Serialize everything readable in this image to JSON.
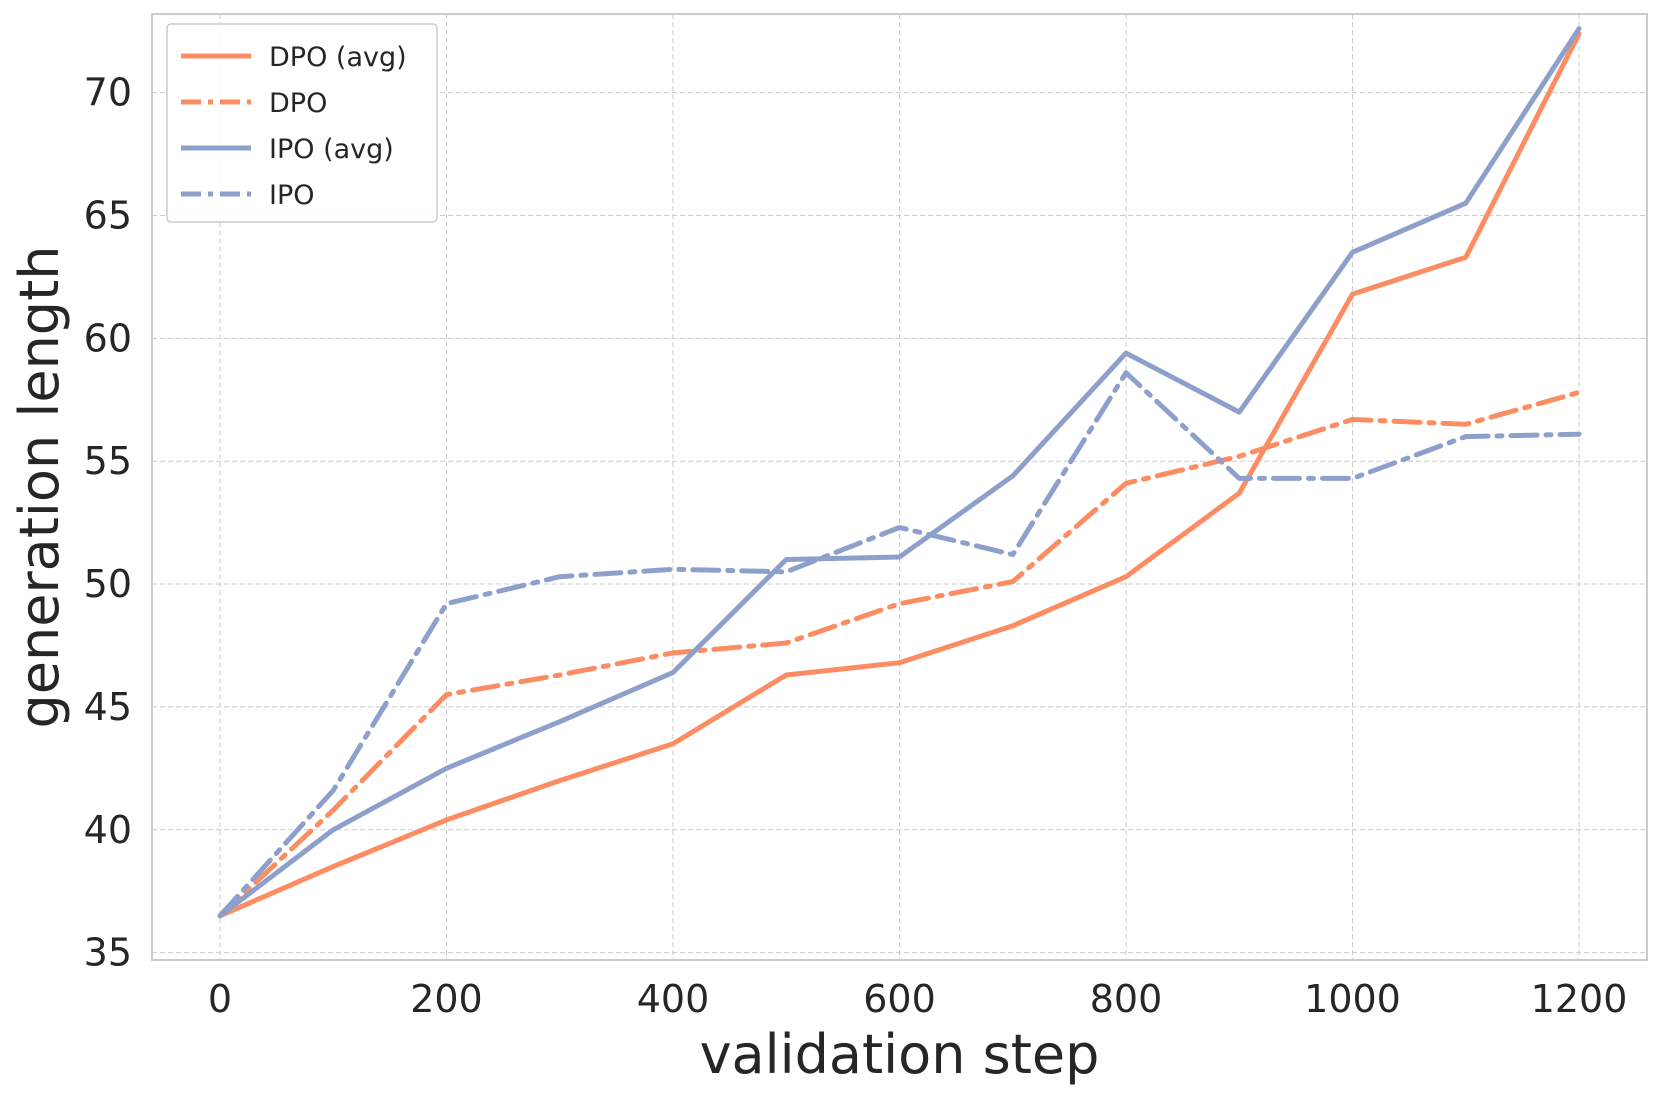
{
  "chart_data": {
    "type": "line",
    "title": "",
    "xlabel": "validation step",
    "ylabel": "generation length",
    "xlim": [
      -60,
      1260
    ],
    "ylim": [
      34.7,
      73.2
    ],
    "xticks": [
      0,
      200,
      400,
      600,
      800,
      1000,
      1200
    ],
    "yticks": [
      35,
      40,
      45,
      50,
      55,
      60,
      65,
      70
    ],
    "grid": true,
    "legend_position": "top-left",
    "x": [
      0,
      100,
      200,
      300,
      400,
      500,
      600,
      700,
      800,
      900,
      1000,
      1100,
      1200
    ],
    "series": [
      {
        "name": "DPO (avg)",
        "color": "#fc8d62",
        "style": "solid",
        "values": [
          36.5,
          38.5,
          40.4,
          42.0,
          43.5,
          46.3,
          46.8,
          48.3,
          50.3,
          53.7,
          61.8,
          63.3,
          72.4
        ]
      },
      {
        "name": "DPO",
        "color": "#fc8d62",
        "style": "dashdot",
        "values": [
          36.5,
          40.8,
          45.5,
          46.3,
          47.2,
          47.6,
          49.2,
          50.1,
          54.1,
          55.2,
          56.7,
          56.5,
          57.8
        ]
      },
      {
        "name": "IPO (avg)",
        "color": "#8da0cb",
        "style": "solid",
        "values": [
          36.5,
          40.0,
          42.5,
          44.4,
          46.4,
          51.0,
          51.1,
          54.4,
          59.4,
          57.0,
          63.5,
          65.5,
          72.6
        ]
      },
      {
        "name": "IPO",
        "color": "#8da0cb",
        "style": "dashdot",
        "values": [
          36.5,
          41.6,
          49.2,
          50.3,
          50.6,
          50.5,
          52.3,
          51.2,
          58.6,
          54.3,
          54.3,
          56.0,
          56.1
        ]
      }
    ]
  }
}
